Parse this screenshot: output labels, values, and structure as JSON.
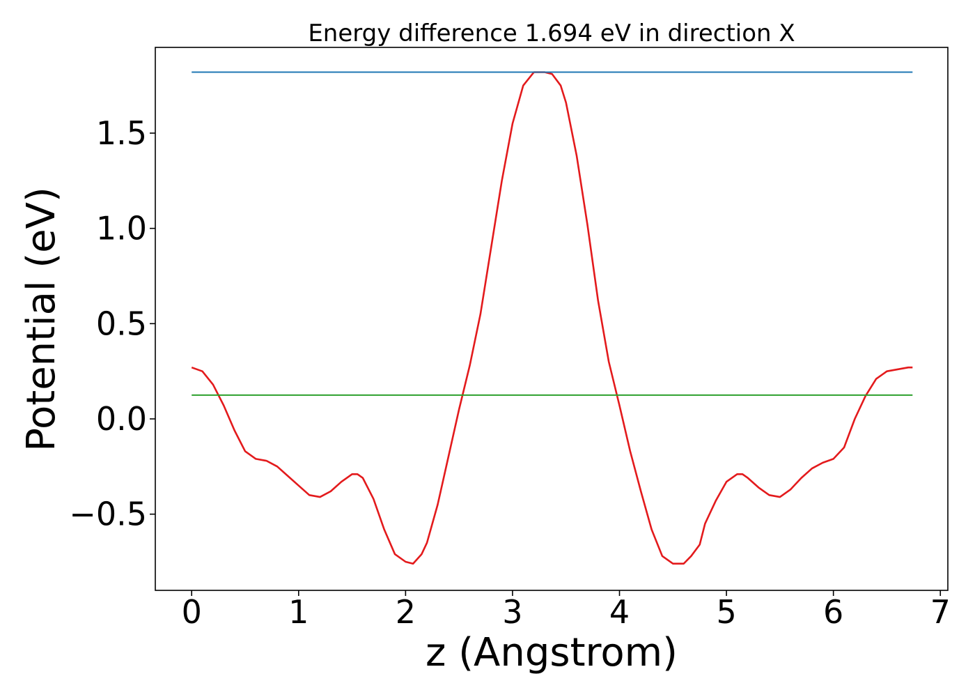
{
  "chart_data": {
    "type": "line",
    "title": "Energy difference 1.694 eV in direction X",
    "xlabel": "z (Angstrom)",
    "ylabel": "Potential (eV)",
    "xlim": [
      -0.34,
      7.07
    ],
    "ylim": [
      -0.9,
      1.95
    ],
    "xticks": [
      {
        "value": 0,
        "label": "0"
      },
      {
        "value": 1,
        "label": "1"
      },
      {
        "value": 2,
        "label": "2"
      },
      {
        "value": 3,
        "label": "3"
      },
      {
        "value": 4,
        "label": "4"
      },
      {
        "value": 5,
        "label": "5"
      },
      {
        "value": 6,
        "label": "6"
      },
      {
        "value": 7,
        "label": "7"
      }
    ],
    "yticks": [
      {
        "value": -0.5,
        "label": "−0.5"
      },
      {
        "value": 0.0,
        "label": "0.0"
      },
      {
        "value": 0.5,
        "label": "0.5"
      },
      {
        "value": 1.0,
        "label": "1.0"
      },
      {
        "value": 1.5,
        "label": "1.5"
      }
    ],
    "grid": false,
    "series": [
      {
        "color": "#e31a1c",
        "x": [
          0,
          0.1,
          0.2,
          0.3,
          0.4,
          0.5,
          0.6,
          0.7,
          0.8,
          0.9,
          1.0,
          1.1,
          1.2,
          1.3,
          1.4,
          1.5,
          1.55,
          1.6,
          1.7,
          1.8,
          1.9,
          2.0,
          2.07,
          2.15,
          2.2,
          2.3,
          2.4,
          2.5,
          2.6,
          2.7,
          2.8,
          2.9,
          3.0,
          3.1,
          3.2,
          3.3,
          3.37,
          3.45,
          3.5,
          3.6,
          3.7,
          3.8,
          3.9,
          4.0,
          4.1,
          4.2,
          4.3,
          4.4,
          4.5,
          4.6,
          4.67,
          4.75,
          4.8,
          4.9,
          5.0,
          5.1,
          5.15,
          5.2,
          5.3,
          5.4,
          5.5,
          5.6,
          5.7,
          5.8,
          5.9,
          6.0,
          6.1,
          6.2,
          6.3,
          6.4,
          6.5,
          6.6,
          6.7,
          6.74
        ],
        "y": [
          0.27,
          0.25,
          0.18,
          0.07,
          -0.06,
          -0.17,
          -0.21,
          -0.22,
          -0.25,
          -0.3,
          -0.35,
          -0.4,
          -0.41,
          -0.38,
          -0.33,
          -0.29,
          -0.29,
          -0.31,
          -0.42,
          -0.58,
          -0.71,
          -0.75,
          -0.76,
          -0.71,
          -0.65,
          -0.45,
          -0.2,
          0.05,
          0.28,
          0.55,
          0.9,
          1.25,
          1.55,
          1.75,
          1.82,
          1.82,
          1.81,
          1.75,
          1.66,
          1.38,
          1.02,
          0.62,
          0.3,
          0.07,
          -0.17,
          -0.38,
          -0.58,
          -0.72,
          -0.76,
          -0.76,
          -0.72,
          -0.66,
          -0.55,
          -0.43,
          -0.33,
          -0.29,
          -0.29,
          -0.31,
          -0.36,
          -0.4,
          -0.41,
          -0.37,
          -0.31,
          -0.26,
          -0.23,
          -0.21,
          -0.15,
          0.0,
          0.12,
          0.21,
          0.25,
          0.26,
          0.27,
          0.27
        ]
      },
      {
        "color": "#1f77b4",
        "x": [
          0,
          6.74
        ],
        "y": [
          1.82,
          1.82
        ]
      },
      {
        "color": "#2ca02c",
        "x": [
          0,
          6.74
        ],
        "y": [
          0.125,
          0.125
        ]
      }
    ]
  }
}
